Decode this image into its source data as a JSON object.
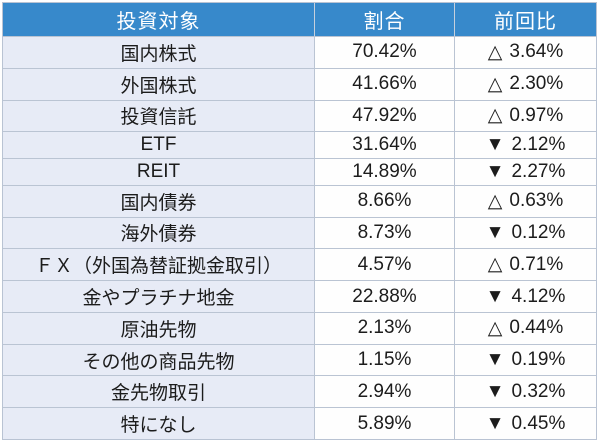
{
  "colors": {
    "header_bg": "#3789cb",
    "header_text": "#ffffff",
    "label_column_bg": "#e7ebf6",
    "value_column_bg": "#fefefe",
    "border": "#bac4d3",
    "body_text": "#1c1c1c"
  },
  "table": {
    "columns": [
      "投資対象",
      "割合",
      "前回比"
    ],
    "rows": [
      {
        "label": "国内株式",
        "ratio": "70.42%",
        "change_symbol": "△",
        "change_value": "3.64%"
      },
      {
        "label": "外国株式",
        "ratio": "41.66%",
        "change_symbol": "△",
        "change_value": "2.30%"
      },
      {
        "label": "投資信託",
        "ratio": "47.92%",
        "change_symbol": "△",
        "change_value": "0.97%"
      },
      {
        "label": "ETF",
        "ratio": "31.64%",
        "change_symbol": "▼",
        "change_value": "2.12%"
      },
      {
        "label": "REIT",
        "ratio": "14.89%",
        "change_symbol": "▼",
        "change_value": "2.27%"
      },
      {
        "label": "国内債券",
        "ratio": "8.66%",
        "change_symbol": "△",
        "change_value": "0.63%"
      },
      {
        "label": "海外債券",
        "ratio": "8.73%",
        "change_symbol": "▼",
        "change_value": "0.12%"
      },
      {
        "label": "ＦＸ（外国為替証拠金取引）",
        "ratio": "4.57%",
        "change_symbol": "△",
        "change_value": "0.71%"
      },
      {
        "label": "金やプラチナ地金",
        "ratio": "22.88%",
        "change_symbol": "▼",
        "change_value": "4.12%"
      },
      {
        "label": "原油先物",
        "ratio": "2.13%",
        "change_symbol": "△",
        "change_value": "0.44%"
      },
      {
        "label": "その他の商品先物",
        "ratio": "1.15%",
        "change_symbol": "▼",
        "change_value": "0.19%"
      },
      {
        "label": "金先物取引",
        "ratio": "2.94%",
        "change_symbol": "▼",
        "change_value": "0.32%"
      },
      {
        "label": "特になし",
        "ratio": "5.89%",
        "change_symbol": "▼",
        "change_value": "0.45%"
      }
    ]
  },
  "chart_data": {
    "type": "table",
    "title": "",
    "columns": [
      "投資対象",
      "割合",
      "前回比"
    ],
    "rows": [
      {
        "投資対象": "国内株式",
        "割合": 70.42,
        "前回比": 3.64,
        "direction": "up"
      },
      {
        "投資対象": "外国株式",
        "割合": 41.66,
        "前回比": 2.3,
        "direction": "up"
      },
      {
        "投資対象": "投資信託",
        "割合": 47.92,
        "前回比": 0.97,
        "direction": "up"
      },
      {
        "投資対象": "ETF",
        "割合": 31.64,
        "前回比": 2.12,
        "direction": "down"
      },
      {
        "投資対象": "REIT",
        "割合": 14.89,
        "前回比": 2.27,
        "direction": "down"
      },
      {
        "投資対象": "国内債券",
        "割合": 8.66,
        "前回比": 0.63,
        "direction": "up"
      },
      {
        "投資対象": "海外債券",
        "割合": 8.73,
        "前回比": 0.12,
        "direction": "down"
      },
      {
        "投資対象": "ＦＸ（外国為替証拠金取引）",
        "割合": 4.57,
        "前回比": 0.71,
        "direction": "up"
      },
      {
        "投資対象": "金やプラチナ地金",
        "割合": 22.88,
        "前回比": 4.12,
        "direction": "down"
      },
      {
        "投資対象": "原油先物",
        "割合": 2.13,
        "前回比": 0.44,
        "direction": "up"
      },
      {
        "投資対象": "その他の商品先物",
        "割合": 1.15,
        "前回比": 0.19,
        "direction": "down"
      },
      {
        "投資対象": "金先物取引",
        "割合": 2.94,
        "前回比": 0.32,
        "direction": "down"
      },
      {
        "投資対象": "特になし",
        "割合": 5.89,
        "前回比": 0.45,
        "direction": "down"
      }
    ]
  }
}
